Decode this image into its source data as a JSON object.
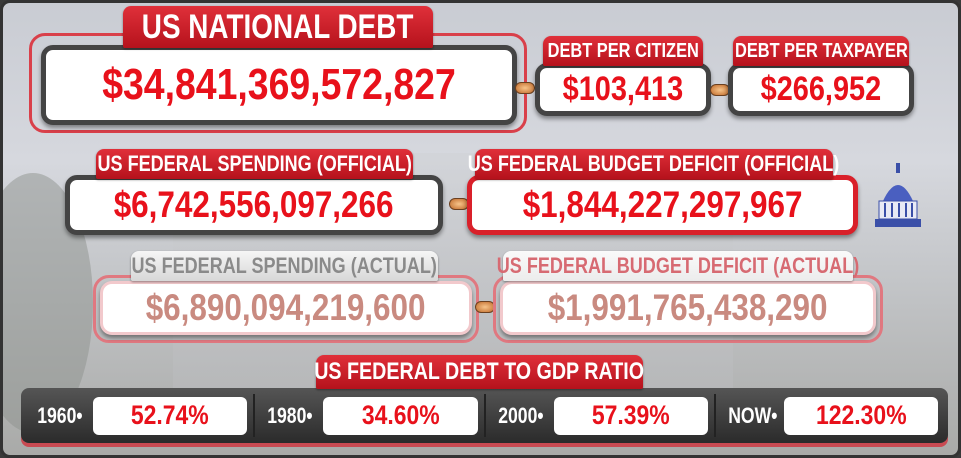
{
  "national_debt": {
    "title": "US NATIONAL DEBT",
    "value": "$34,841,369,572,827"
  },
  "debt_per_citizen": {
    "title": "DEBT PER CITIZEN",
    "value": "$103,413"
  },
  "debt_per_taxpayer": {
    "title": "DEBT PER TAXPAYER",
    "value": "$266,952"
  },
  "spending_official": {
    "title": "US FEDERAL SPENDING (OFFICIAL)",
    "value": "$6,742,556,097,266"
  },
  "deficit_official": {
    "title": "US FEDERAL BUDGET DEFICIT (OFFICIAL)",
    "value": "$1,844,227,297,967"
  },
  "spending_actual": {
    "title": "US FEDERAL SPENDING (ACTUAL)",
    "value": "$6,890,094,219,600"
  },
  "deficit_actual": {
    "title": "US FEDERAL BUDGET DEFICIT (ACTUAL)",
    "value": "$1,991,765,438,290"
  },
  "gdp_ratio": {
    "title": "US FEDERAL DEBT TO GDP RATIO",
    "items": [
      {
        "label": "1960•",
        "value": "52.74%"
      },
      {
        "label": "1980•",
        "value": "34.60%"
      },
      {
        "label": "2000•",
        "value": "57.39%"
      },
      {
        "label": "NOW•",
        "value": "122.30%"
      }
    ]
  },
  "colors": {
    "accent": "#e8111b",
    "tab_red": "#c41a24",
    "actual_value": "#c98a80",
    "actual_deficit_title": "#d76a72"
  },
  "icons": {
    "capitol": "capitol-dome-icon",
    "connector": "connector-link-icon"
  }
}
